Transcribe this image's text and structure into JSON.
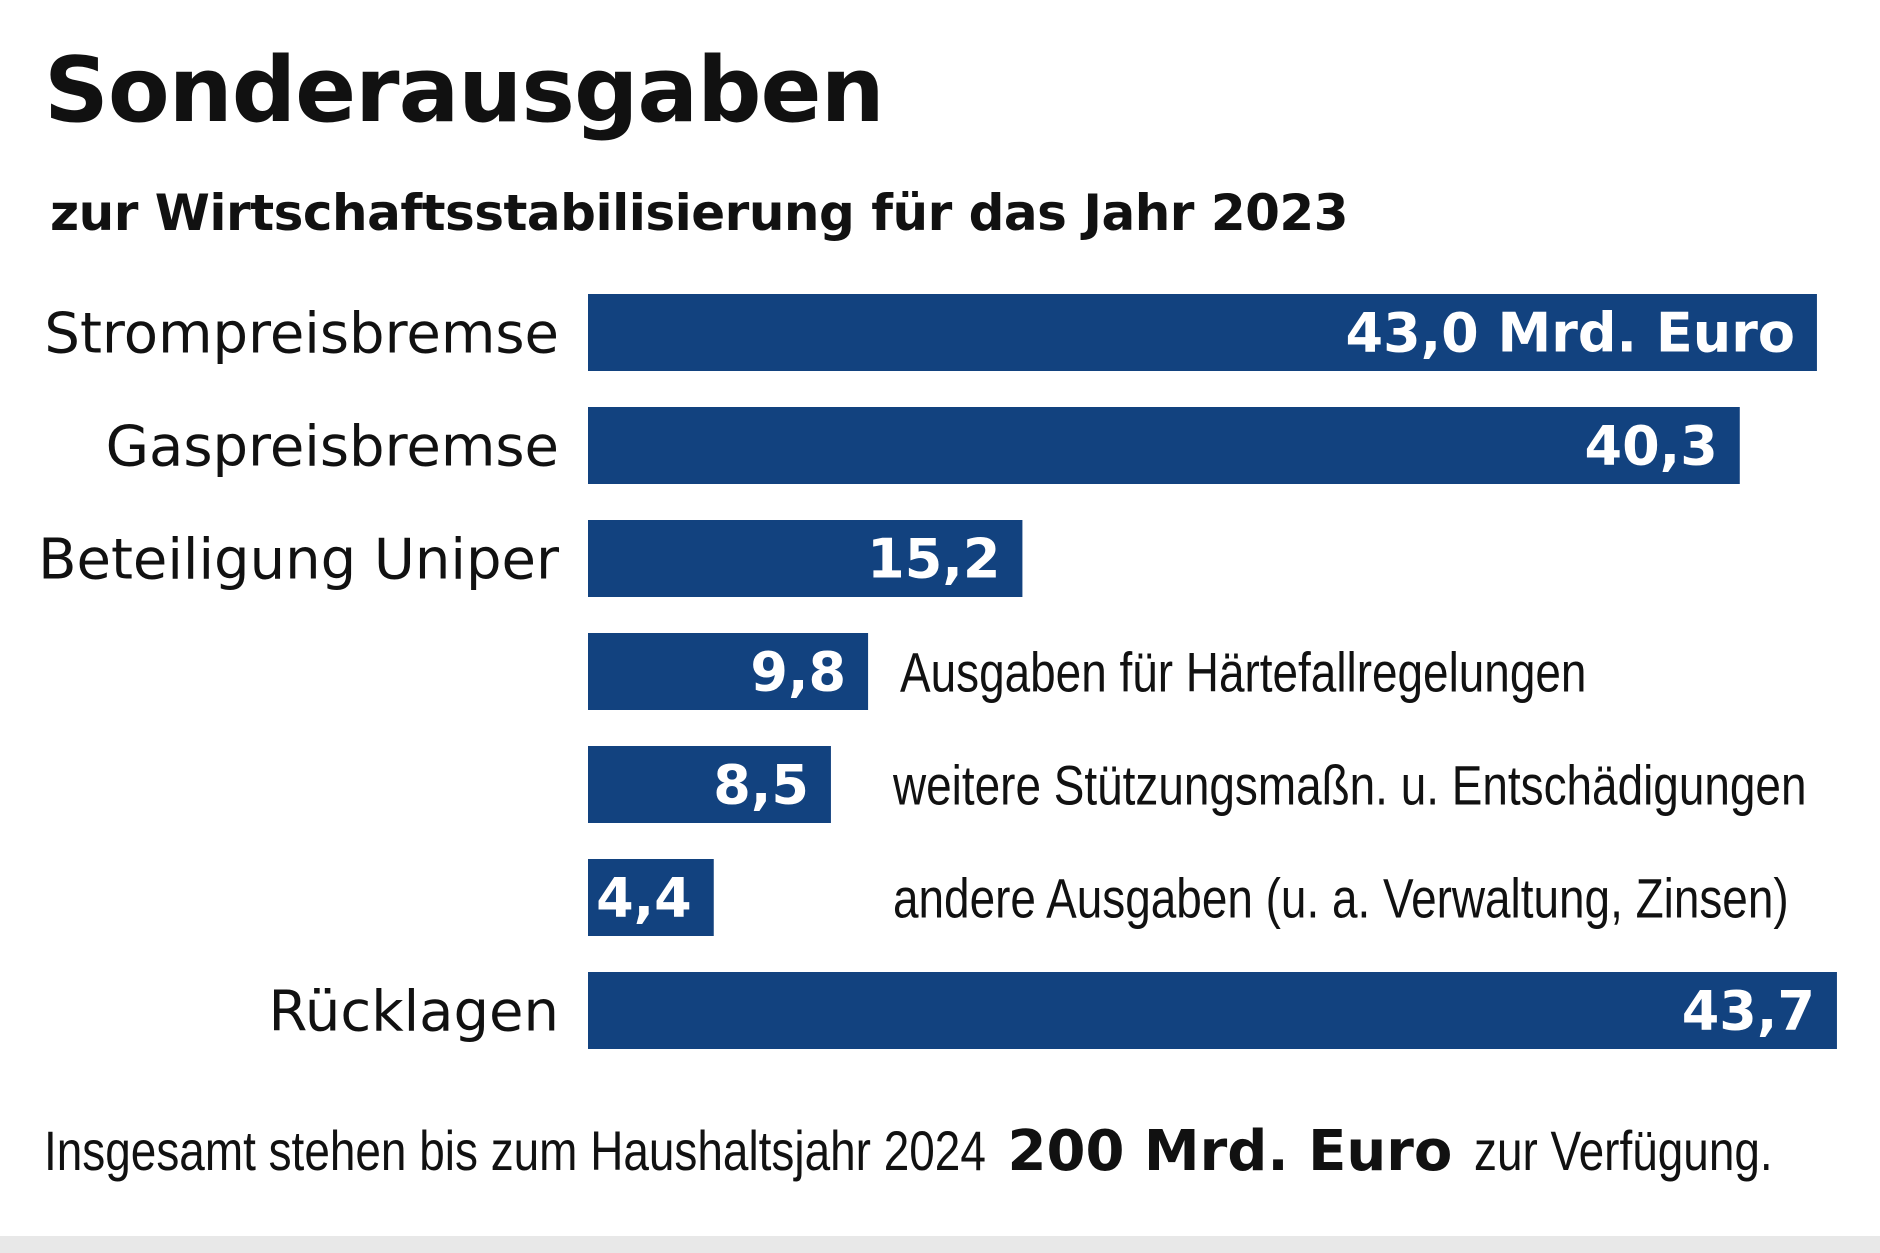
{
  "chart_data": {
    "type": "bar",
    "orientation": "horizontal",
    "title": "Sonderausgaben",
    "subtitle": "zur Wirtschaftsstabilisierung für das Jahr 2023",
    "unit": "Mrd. Euro",
    "bar_color": "#12427f",
    "grid": false,
    "bars": [
      {
        "category": "Strompreisbremse",
        "value": 43.0,
        "label": "43,0 Mrd. Euro",
        "label_side": "left"
      },
      {
        "category": "Gaspreisbremse",
        "value": 40.3,
        "label": "40,3",
        "label_side": "left"
      },
      {
        "category": "Beteiligung Uniper",
        "value": 15.2,
        "label": "15,2",
        "label_side": "left"
      },
      {
        "category": "Ausgaben für Härtefallregelungen",
        "value": 9.8,
        "label": "9,8",
        "label_side": "right"
      },
      {
        "category": "weitere Stützungsmaßn. u. Entschädigungen",
        "value": 8.5,
        "label": "8,5",
        "label_side": "right"
      },
      {
        "category": "andere Ausgaben (u. a. Verwaltung, Zinsen)",
        "value": 4.4,
        "label": "4,4",
        "label_side": "right"
      },
      {
        "category": "Rücklagen",
        "value": 43.7,
        "label": "43,7",
        "label_side": "left"
      }
    ]
  },
  "footer": {
    "prefix": "Insgesamt stehen bis zum Haushaltsjahr 2024",
    "highlight": "200 Mrd. Euro",
    "suffix": "zur Verfügung."
  }
}
